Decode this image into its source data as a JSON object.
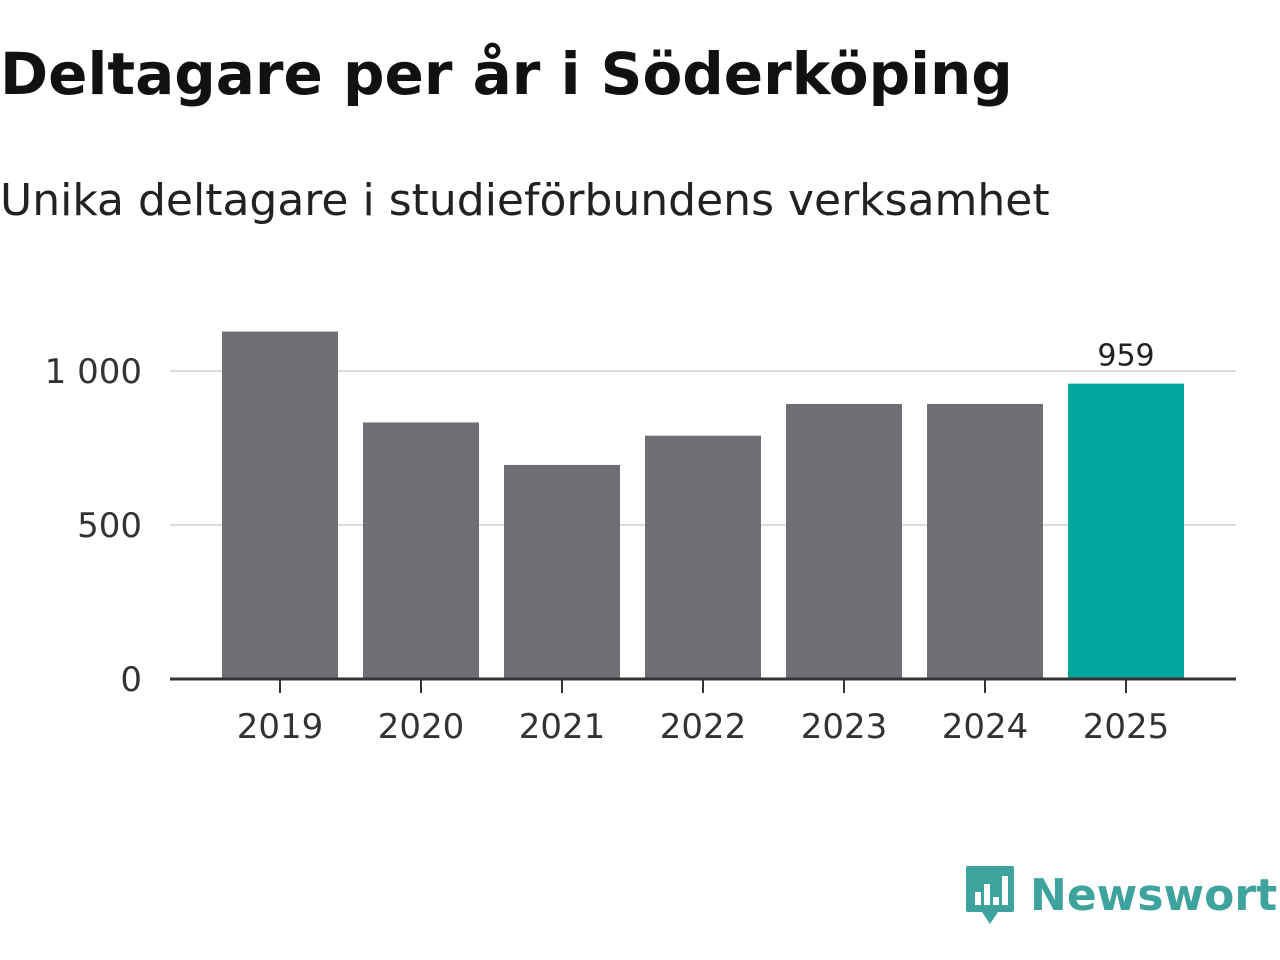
{
  "chart_data": {
    "type": "bar",
    "title": "Deltagare per år i Söderköping",
    "subtitle": "Unika deltagare i studieförbundens verksamhet",
    "categories": [
      "2019",
      "2020",
      "2021",
      "2022",
      "2023",
      "2024",
      "2025"
    ],
    "values": [
      1128,
      833,
      695,
      790,
      893,
      893,
      959
    ],
    "ylim": [
      0,
      1000
    ],
    "yticks": [
      0,
      500,
      1000
    ],
    "ytick_labels": [
      "0",
      "500",
      "1 000"
    ],
    "highlight_index": 6,
    "highlight_label": "959",
    "colors": {
      "bar": "#6f6e75",
      "highlight": "#00a59b",
      "grid": "#dddddd",
      "axis": "#333333"
    },
    "grid": true
  },
  "brand": {
    "name": "Newsworthy",
    "icon": "newsworthy-logo-icon",
    "color": "#3ea39d"
  }
}
